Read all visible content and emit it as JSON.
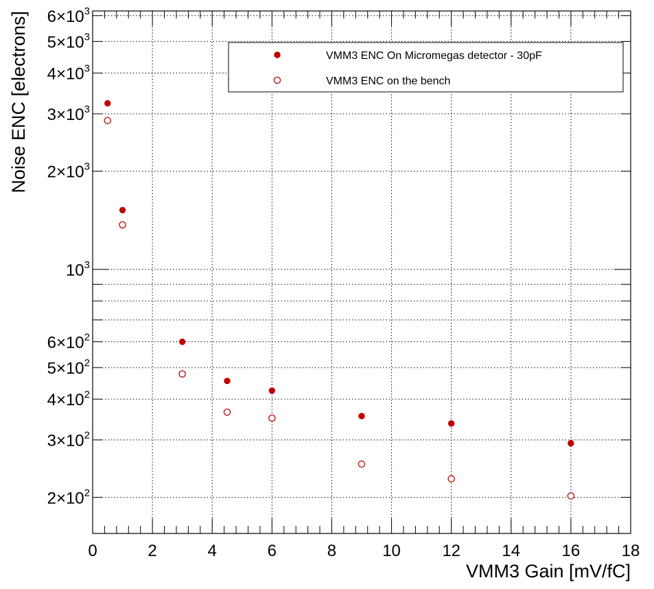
{
  "chart_data": {
    "type": "scatter",
    "xlabel": "VMM3 Gain [mV/fC]",
    "ylabel": "Noise ENC [electrons]",
    "xlim": [
      0,
      18
    ],
    "ylim": [
      155,
      6200
    ],
    "y_scale": "log",
    "grid": true,
    "legend_position": "top-right",
    "x_ticks": [
      0,
      2,
      4,
      6,
      8,
      10,
      12,
      14,
      16,
      18
    ],
    "y_ticks": [
      {
        "value": 200,
        "mantissa": "2",
        "exponent": "2"
      },
      {
        "value": 300,
        "mantissa": "3",
        "exponent": "2"
      },
      {
        "value": 400,
        "mantissa": "4",
        "exponent": "2"
      },
      {
        "value": 500,
        "mantissa": "5",
        "exponent": "2"
      },
      {
        "value": 600,
        "mantissa": "6",
        "exponent": "2"
      },
      {
        "value": 1000,
        "mantissa": "",
        "exponent": "3"
      },
      {
        "value": 2000,
        "mantissa": "2",
        "exponent": "3"
      },
      {
        "value": 3000,
        "mantissa": "3",
        "exponent": "3"
      },
      {
        "value": 4000,
        "mantissa": "4",
        "exponent": "3"
      },
      {
        "value": 5000,
        "mantissa": "5",
        "exponent": "3"
      },
      {
        "value": 6000,
        "mantissa": "6",
        "exponent": "3"
      }
    ],
    "series": [
      {
        "name": "VMM3 ENC On Micromegas detector - 30pF",
        "marker": "filled-circle",
        "color": "#c00000",
        "points": [
          {
            "x": 0.5,
            "y": 3230
          },
          {
            "x": 1.0,
            "y": 1520
          },
          {
            "x": 3.0,
            "y": 600
          },
          {
            "x": 4.5,
            "y": 455
          },
          {
            "x": 6.0,
            "y": 425
          },
          {
            "x": 9.0,
            "y": 355
          },
          {
            "x": 12.0,
            "y": 337
          },
          {
            "x": 16.0,
            "y": 293
          }
        ]
      },
      {
        "name": "VMM3 ENC on the bench",
        "marker": "open-circle",
        "color": "#c00000",
        "points": [
          {
            "x": 0.5,
            "y": 2860
          },
          {
            "x": 1.0,
            "y": 1370
          },
          {
            "x": 3.0,
            "y": 478
          },
          {
            "x": 4.5,
            "y": 365
          },
          {
            "x": 6.0,
            "y": 350
          },
          {
            "x": 9.0,
            "y": 253
          },
          {
            "x": 12.0,
            "y": 228
          },
          {
            "x": 16.0,
            "y": 202
          }
        ]
      }
    ]
  }
}
